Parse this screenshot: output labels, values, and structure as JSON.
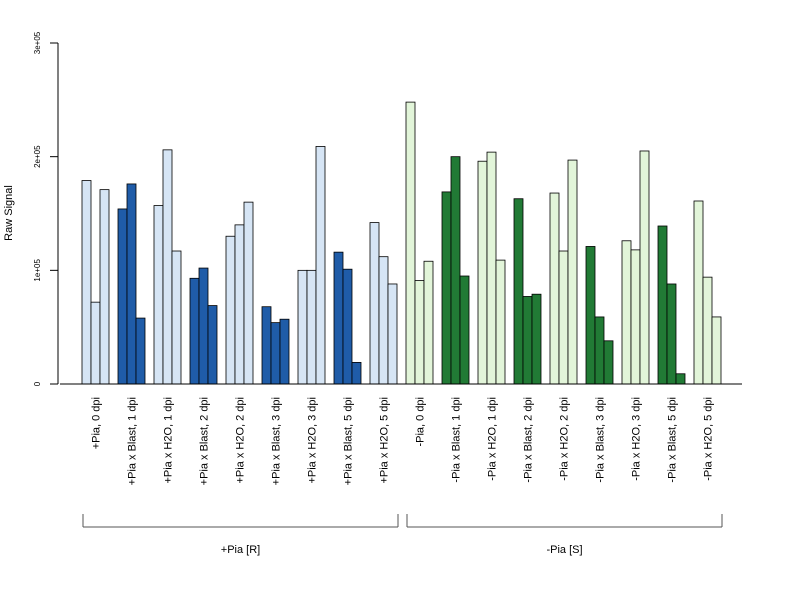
{
  "chart_data": {
    "type": "bar",
    "ylabel": "Raw Signal",
    "ylim": [
      0,
      300000
    ],
    "yticks": [
      {
        "value": 0,
        "label": "0"
      },
      {
        "value": 100000,
        "label": "1e+05"
      },
      {
        "value": 200000,
        "label": "2e+05"
      },
      {
        "value": 300000,
        "label": "3e+05"
      }
    ],
    "colors": {
      "light_blue": "#d6e5f5",
      "dark_blue": "#1f5ca8",
      "light_green": "#e2f5d9",
      "dark_green": "#217a35"
    },
    "categories": [
      {
        "label": "+Pia, 0 dpi",
        "color": "light_blue",
        "values": [
          179000,
          72000,
          171000
        ]
      },
      {
        "label": "+Pia x Blast, 1 dpi",
        "color": "dark_blue",
        "values": [
          154000,
          176000,
          58000
        ]
      },
      {
        "label": "+Pia x H2O, 1 dpi",
        "color": "light_blue",
        "values": [
          157000,
          206000,
          117000
        ]
      },
      {
        "label": "+Pia x Blast, 2 dpi",
        "color": "dark_blue",
        "values": [
          93000,
          102000,
          69000
        ]
      },
      {
        "label": "+Pia x H2O, 2 dpi",
        "color": "light_blue",
        "values": [
          130000,
          140000,
          160000
        ]
      },
      {
        "label": "+Pia x Blast, 3 dpi",
        "color": "dark_blue",
        "values": [
          68000,
          54000,
          57000
        ]
      },
      {
        "label": "+Pia x H2O, 3 dpi",
        "color": "light_blue",
        "values": [
          100000,
          100000,
          209000
        ]
      },
      {
        "label": "+Pia x Blast, 5 dpi",
        "color": "dark_blue",
        "values": [
          116000,
          101000,
          19000
        ]
      },
      {
        "label": "+Pia x H2O, 5 dpi",
        "color": "light_blue",
        "values": [
          142000,
          112000,
          88000
        ]
      },
      {
        "label": "-Pia, 0 dpi",
        "color": "light_green",
        "values": [
          248000,
          91000,
          108000
        ]
      },
      {
        "label": "-Pia x Blast, 1 dpi",
        "color": "dark_green",
        "values": [
          169000,
          200000,
          95000
        ]
      },
      {
        "label": "-Pia x H2O, 1 dpi",
        "color": "light_green",
        "values": [
          196000,
          204000,
          109000
        ]
      },
      {
        "label": "-Pia x Blast, 2 dpi",
        "color": "dark_green",
        "values": [
          163000,
          77000,
          79000
        ]
      },
      {
        "label": "-Pia x H2O, 2 dpi",
        "color": "light_green",
        "values": [
          168000,
          117000,
          197000
        ]
      },
      {
        "label": "-Pia x Blast, 3 dpi",
        "color": "dark_green",
        "values": [
          121000,
          59000,
          38000
        ]
      },
      {
        "label": "-Pia x H2O, 3 dpi",
        "color": "light_green",
        "values": [
          126000,
          118000,
          205000
        ]
      },
      {
        "label": "-Pia x Blast, 5 dpi",
        "color": "dark_green",
        "values": [
          139000,
          88000,
          9000
        ]
      },
      {
        "label": "-Pia x H2O, 5 dpi",
        "color": "light_green",
        "values": [
          161000,
          94000,
          59000
        ]
      }
    ],
    "groups": [
      {
        "label": "+Pia [R]",
        "first": 0,
        "last": 8
      },
      {
        "label": "-Pia [S]",
        "first": 9,
        "last": 17
      }
    ]
  }
}
